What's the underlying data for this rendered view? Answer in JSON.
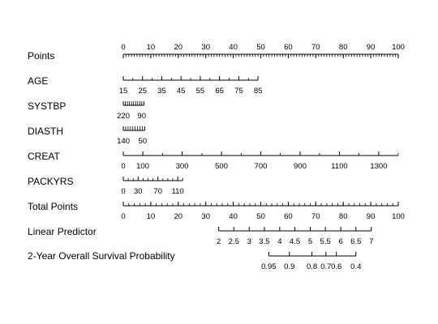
{
  "chart_data": {
    "type": "nomogram",
    "title": "",
    "scales": [
      {
        "label": "Points",
        "minor_step": 1,
        "label_position": "above",
        "ticks": [
          {
            "label": "0",
            "points": 0
          },
          {
            "label": "10",
            "points": 10
          },
          {
            "label": "20",
            "points": 20
          },
          {
            "label": "30",
            "points": 30
          },
          {
            "label": "40",
            "points": 40
          },
          {
            "label": "50",
            "points": 50
          },
          {
            "label": "60",
            "points": 60
          },
          {
            "label": "70",
            "points": 70
          },
          {
            "label": "80",
            "points": 80
          },
          {
            "label": "90",
            "points": 90
          },
          {
            "label": "100",
            "points": 100
          }
        ]
      },
      {
        "label": "AGE",
        "label_position": "below",
        "ticks": [
          {
            "label": "15",
            "points": 0
          },
          {
            "label": "25",
            "points": 7
          },
          {
            "label": "35",
            "points": 14
          },
          {
            "label": "45",
            "points": 21
          },
          {
            "label": "55",
            "points": 28
          },
          {
            "label": "65",
            "points": 35
          },
          {
            "label": "75",
            "points": 42
          },
          {
            "label": "85",
            "points": 49
          }
        ],
        "minor_ticks": [
          3.5,
          10.5,
          17.5,
          24.5,
          31.5,
          38.5,
          45.5
        ]
      },
      {
        "label": "SYSTBP",
        "label_position": "below",
        "ticks": [
          {
            "label": "220",
            "points": 0
          },
          {
            "label": "90",
            "points": 7.5
          }
        ],
        "minor_ticks": [
          0.75,
          1.5,
          2.25,
          3,
          3.75,
          4.5,
          5.25,
          6,
          6.75
        ],
        "dense": true
      },
      {
        "label": "DIASTH",
        "label_position": "below",
        "ticks": [
          {
            "label": "140",
            "points": 0
          },
          {
            "label": "50",
            "points": 7.8
          }
        ],
        "minor_ticks": [
          0.87,
          1.73,
          2.6,
          3.47,
          4.33,
          5.2,
          6.07,
          6.93
        ],
        "dense": true
      },
      {
        "label": "CREAT",
        "label_position": "below",
        "ticks": [
          {
            "label": "0",
            "points": 0
          },
          {
            "label": "100",
            "points": 7.1
          },
          {
            "label": "300",
            "points": 21.4
          },
          {
            "label": "500",
            "points": 35.7
          },
          {
            "label": "700",
            "points": 50
          },
          {
            "label": "900",
            "points": 64.3
          },
          {
            "label": "1100",
            "points": 78.6
          },
          {
            "label": "1300",
            "points": 92.9
          }
        ],
        "minor_ticks": [
          14.3,
          28.6,
          42.9,
          57.1,
          71.4,
          85.7,
          100
        ]
      },
      {
        "label": "PACKYRS",
        "label_position": "below",
        "ticks": [
          {
            "label": "0",
            "points": 0
          },
          {
            "label": "30",
            "points": 5.4
          },
          {
            "label": "70",
            "points": 12.6
          },
          {
            "label": "110",
            "points": 19.8
          }
        ],
        "minor_ticks": [
          1.8,
          3.6,
          7.2,
          9,
          10.8,
          14.4,
          16.2,
          18,
          21.6
        ]
      },
      {
        "label": "Total Points",
        "minor_step": 2,
        "label_position": "below",
        "ticks": [
          {
            "label": "0",
            "points": 0
          },
          {
            "label": "10",
            "points": 10
          },
          {
            "label": "20",
            "points": 20
          },
          {
            "label": "30",
            "points": 30
          },
          {
            "label": "40",
            "points": 40
          },
          {
            "label": "50",
            "points": 50
          },
          {
            "label": "60",
            "points": 60
          },
          {
            "label": "70",
            "points": 70
          },
          {
            "label": "80",
            "points": 80
          },
          {
            "label": "90",
            "points": 90
          },
          {
            "label": "100",
            "points": 100
          }
        ]
      },
      {
        "label": "Linear Predictor",
        "label_position": "below",
        "ticks": [
          {
            "label": "2",
            "points": 34.7
          },
          {
            "label": "2.5",
            "points": 40.2
          },
          {
            "label": "3",
            "points": 45.8
          },
          {
            "label": "3.5",
            "points": 51.3
          },
          {
            "label": "4",
            "points": 56.9
          },
          {
            "label": "4.5",
            "points": 62.4
          },
          {
            "label": "5",
            "points": 68
          },
          {
            "label": "5.5",
            "points": 73.5
          },
          {
            "label": "6",
            "points": 79.1
          },
          {
            "label": "6.5",
            "points": 84.6
          },
          {
            "label": "7",
            "points": 90.2
          }
        ]
      },
      {
        "label": "2-Year Overall Survival Probability",
        "label_position": "below",
        "ticks": [
          {
            "label": "0.95",
            "points": 52.9
          },
          {
            "label": "0.9",
            "points": 60.4
          },
          {
            "label": "0.8",
            "points": 68.6
          },
          {
            "label": "0.7",
            "points": 73.7
          },
          {
            "label": "0.6",
            "points": 77.5
          },
          {
            "label": "0.4",
            "points": 84.6
          }
        ]
      }
    ]
  }
}
